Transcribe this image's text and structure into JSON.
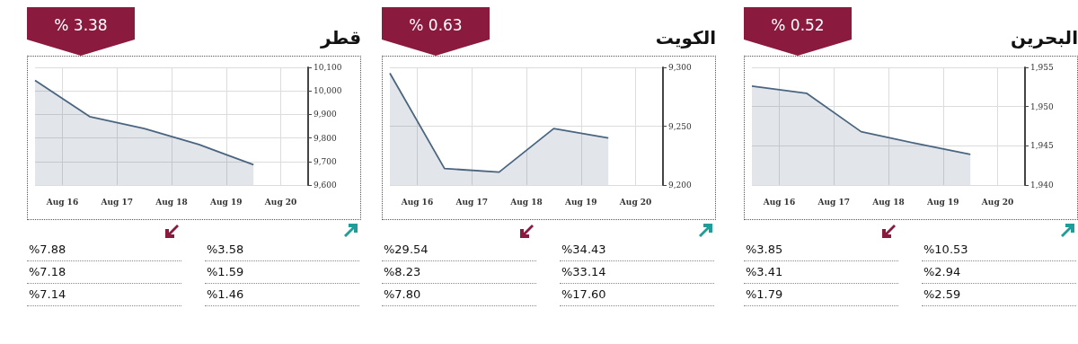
{
  "chart_data": [
    {
      "type": "area",
      "title": "قطر",
      "subtitle": "% 3.38",
      "x": [
        "--08-15T12:00",
        "--08-16T12:00",
        "--08-17T12:00",
        "--08-18T12:00",
        "--08-19T12:00"
      ],
      "series": [
        {
          "color": "#4a6580",
          "values": [
            10045,
            9891,
            9840,
            9772,
            9686
          ]
        }
      ],
      "xlim": [
        "--08-15T12:00",
        "--08-20T12:00"
      ],
      "xticks": [
        {
          "value": "--08-16",
          "label": "Aug 16"
        },
        {
          "value": "--08-17",
          "label": "Aug 17"
        },
        {
          "value": "--08-18",
          "label": "Aug 18"
        },
        {
          "value": "--08-19",
          "label": "Aug 19"
        },
        {
          "value": "--08-20",
          "label": "Aug 20"
        }
      ],
      "ylim": [
        9600,
        10100
      ],
      "yticks": [
        {
          "value": 9600,
          "label": "9,600"
        },
        {
          "value": 9700,
          "label": "9,700"
        },
        {
          "value": 9800,
          "label": "9,800"
        },
        {
          "value": 9900,
          "label": "9,900"
        },
        {
          "value": 10000,
          "label": "10,000"
        },
        {
          "value": 10100,
          "label": "10,100"
        }
      ],
      "grid": true,
      "marker": "none",
      "annotations": [
        "%3.58",
        "%1.59",
        "%1.46",
        "%7.88",
        "%7.18",
        "%7.14"
      ]
    },
    {
      "type": "area",
      "title": "الكويت",
      "subtitle": "% 0.63",
      "x": [
        "--08-15T12:00",
        "--08-16T12:00",
        "--08-17T12:00",
        "--08-18T12:00",
        "--08-19T12:00"
      ],
      "series": [
        {
          "color": "#4a6580",
          "values": [
            9295,
            9214,
            9211,
            9248,
            9240
          ]
        }
      ],
      "xlim": [
        "--08-15T12:00",
        "--08-20T12:00"
      ],
      "xticks": [
        {
          "value": "--08-16",
          "label": "Aug 16"
        },
        {
          "value": "--08-17",
          "label": "Aug 17"
        },
        {
          "value": "--08-18",
          "label": "Aug 18"
        },
        {
          "value": "--08-19",
          "label": "Aug 19"
        },
        {
          "value": "--08-20",
          "label": "Aug 20"
        }
      ],
      "ylim": [
        9200,
        9300
      ],
      "yticks": [
        {
          "value": 9200,
          "label": "9,200"
        },
        {
          "value": 9250,
          "label": "9,250"
        },
        {
          "value": 9300,
          "label": "9,300"
        }
      ],
      "grid": true,
      "marker": "none",
      "annotations": [
        "%34.43",
        "%33.14",
        "%17.60",
        "%29.54",
        "%8.23",
        "%7.80"
      ]
    },
    {
      "type": "area",
      "title": "البحرين",
      "subtitle": "% 0.52",
      "x": [
        "--08-15T12:00",
        "--08-16T12:00",
        "--08-17T12:00",
        "--08-18T12:00",
        "--08-19T12:00"
      ],
      "series": [
        {
          "color": "#4a6580",
          "values": [
            1952.6,
            1951.7,
            1946.8,
            1945.3,
            1943.9
          ]
        }
      ],
      "xlim": [
        "--08-15T12:00",
        "--08-20T12:00"
      ],
      "xticks": [
        {
          "value": "--08-16",
          "label": "Aug 16"
        },
        {
          "value": "--08-17",
          "label": "Aug 17"
        },
        {
          "value": "--08-18",
          "label": "Aug 18"
        },
        {
          "value": "--08-19",
          "label": "Aug 19"
        },
        {
          "value": "--08-20",
          "label": "Aug 20"
        }
      ],
      "ylim": [
        1940,
        1955
      ],
      "yticks": [
        {
          "value": 1940,
          "label": "1,940"
        },
        {
          "value": 1945,
          "label": "1,945"
        },
        {
          "value": 1950,
          "label": "1,950"
        },
        {
          "value": 1955,
          "label": "1,955"
        }
      ],
      "grid": true,
      "marker": "none",
      "annotations": [
        "%10.53",
        "%2.94",
        "%2.59",
        "%3.85",
        "%3.41",
        "%1.79"
      ]
    }
  ]
}
